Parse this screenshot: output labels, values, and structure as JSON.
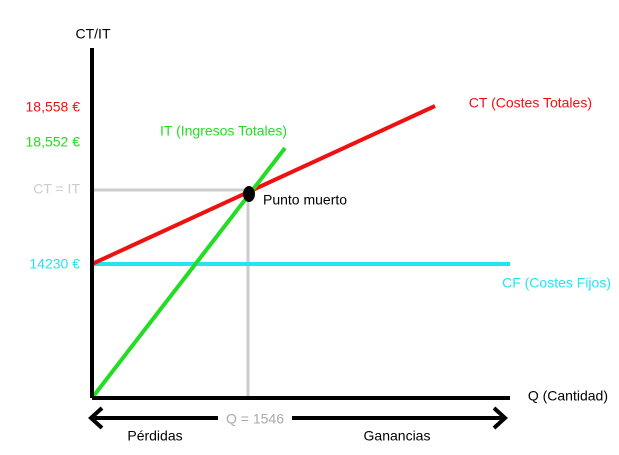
{
  "axes": {
    "y_label": "CT/IT",
    "x_label": "Q (Cantidad)"
  },
  "lines": {
    "ct": "CT (Costes Totales)",
    "it": "IT (Ingresos Totales)",
    "cf": "CF (Costes Fijos)"
  },
  "break_even": {
    "label": "Punto muerto",
    "q_label": "Q = 1546",
    "y_label": "CT = IT"
  },
  "y_labels": {
    "ct": "18,558 €",
    "it": "18,552 €",
    "cf": "14230 €"
  },
  "regions": {
    "left": "Pérdidas",
    "right": "Ganancias"
  }
}
